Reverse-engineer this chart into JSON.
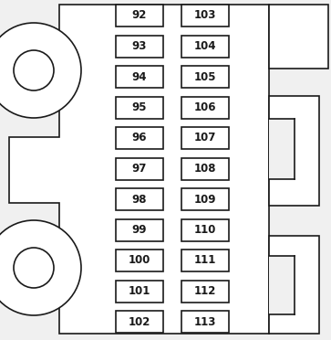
{
  "bg_color": "#f0f0f0",
  "body_color": "#ffffff",
  "line_color": "#1a1a1a",
  "fuse_box_bg": "#ffffff",
  "left_col": [
    92,
    93,
    94,
    95,
    96,
    97,
    98,
    99,
    100,
    101,
    102
  ],
  "right_col": [
    103,
    104,
    105,
    106,
    107,
    108,
    109,
    110,
    111,
    112,
    113
  ],
  "font_size": 8.5,
  "font_weight": "bold",
  "lw": 1.2
}
